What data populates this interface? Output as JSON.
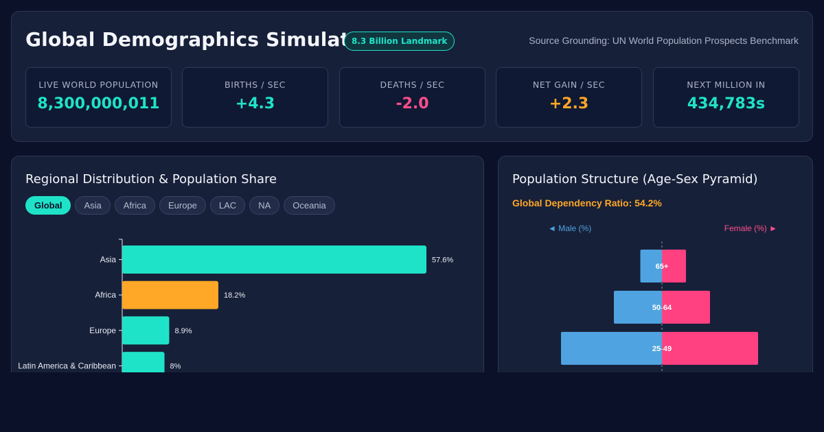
{
  "header": {
    "title": "Global Demographics Simulator",
    "badge": "8.3 Billion Landmark",
    "source": "Source Grounding: UN World Population Prospects Benchmark"
  },
  "stats": [
    {
      "label": "LIVE WORLD POPULATION",
      "value": "8,300,000,011",
      "color": "#1fe3c8"
    },
    {
      "label": "BIRTHS / SEC",
      "value": "+4.3",
      "color": "#1fe3c8"
    },
    {
      "label": "DEATHS / SEC",
      "value": "-2.0",
      "color": "#ff4f8b"
    },
    {
      "label": "NET GAIN / SEC",
      "value": "+2.3",
      "color": "#ffa726"
    },
    {
      "label": "NEXT MILLION IN",
      "value": "434,783s",
      "color": "#1fe3c8"
    }
  ],
  "regional": {
    "title": "Regional Distribution & Population Share",
    "tabs": [
      {
        "label": "Global",
        "active": true
      },
      {
        "label": "Asia",
        "active": false
      },
      {
        "label": "Africa",
        "active": false
      },
      {
        "label": "Europe",
        "active": false
      },
      {
        "label": "LAC",
        "active": false
      },
      {
        "label": "NA",
        "active": false
      },
      {
        "label": "Oceania",
        "active": false
      }
    ]
  },
  "pyramid": {
    "title": "Population Structure (Age-Sex Pyramid)",
    "dependency_ratio": "Global Dependency Ratio: 54.2%",
    "male_label": "◄ Male (%)",
    "female_label": "Female (%) ►"
  },
  "colors": {
    "accent": "#1fe3c8",
    "orange": "#ffa726",
    "male": "#4fa3e0",
    "female": "#ff4081"
  },
  "chart_data": [
    {
      "type": "bar",
      "orientation": "horizontal",
      "categories": [
        "Asia",
        "Africa",
        "Europe",
        "Latin America & Caribbean"
      ],
      "values": [
        57.6,
        18.2,
        8.9,
        8
      ],
      "value_labels": [
        "57.6%",
        "18.2%",
        "8.9%",
        "8%"
      ],
      "colors": [
        "#1fe3c8",
        "#ffa726",
        "#1fe3c8",
        "#1fe3c8"
      ],
      "xlim": [
        0,
        60
      ]
    },
    {
      "type": "bar",
      "orientation": "horizontal-diverging",
      "categories": [
        "65+",
        "50-64",
        "25-49"
      ],
      "series": [
        {
          "name": "Male (%)",
          "values": [
            4.5,
            10,
            21
          ]
        },
        {
          "name": "Female (%)",
          "values": [
            5,
            10,
            20
          ]
        }
      ],
      "colors": [
        "#4fa3e0",
        "#ff4081"
      ]
    }
  ]
}
